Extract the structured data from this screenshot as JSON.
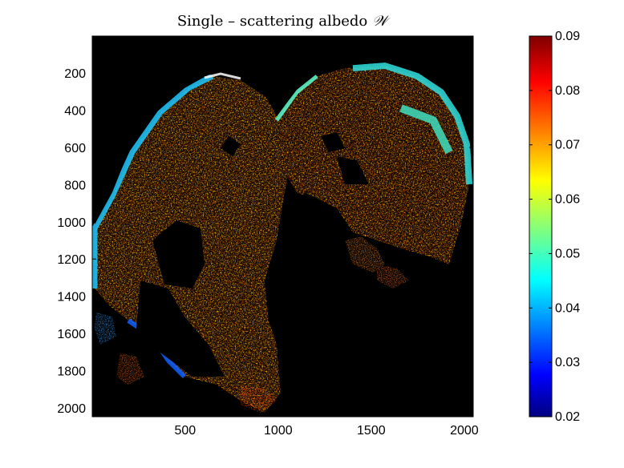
{
  "chart_data": {
    "type": "heatmap",
    "title": "Single – scattering albedo",
    "title_symbol": "𝒲",
    "xlabel": "",
    "ylabel": "",
    "x_ticks": [
      500,
      1000,
      1500,
      2000
    ],
    "y_ticks": [
      200,
      400,
      600,
      800,
      1000,
      1200,
      1400,
      1600,
      1800,
      2000
    ],
    "xlim": [
      1,
      2048
    ],
    "ylim": [
      2048,
      1
    ],
    "y_axis_direction": "down",
    "colorbar": {
      "colormap": "jet",
      "range": [
        0.02,
        0.09
      ],
      "ticks": [
        0.02,
        0.03,
        0.04,
        0.05,
        0.06,
        0.07,
        0.08,
        0.09
      ],
      "tick_labels": [
        "0.02",
        "0.03",
        "0.04",
        "0.05",
        "0.06",
        "0.07",
        "0.08",
        "0.09"
      ]
    },
    "background_color": "#000000",
    "grid": false,
    "legend": "none"
  }
}
